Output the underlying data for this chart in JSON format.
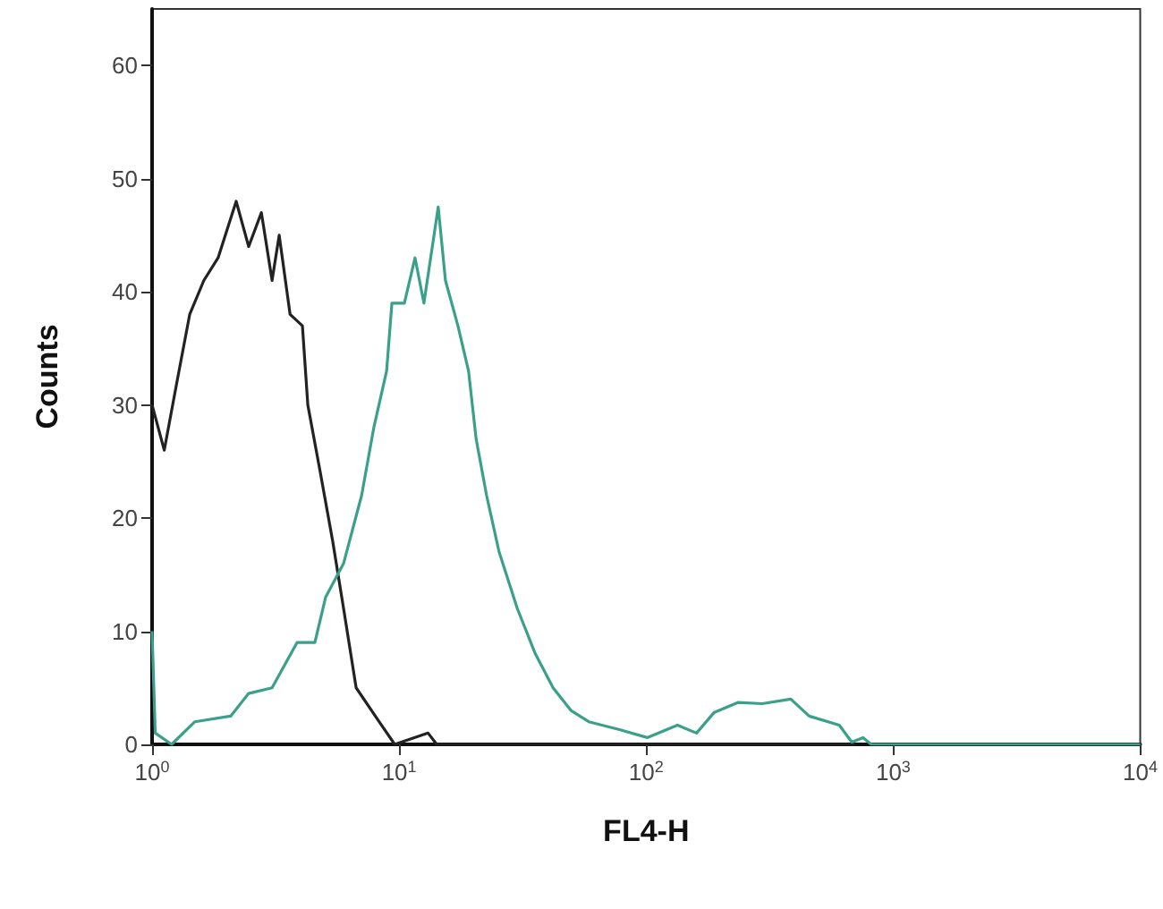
{
  "chart_data": {
    "type": "line",
    "xlabel": "FL4-H",
    "ylabel": "Counts",
    "log": "x",
    "grid": false,
    "marker": "none",
    "line_style": "solid",
    "xlim": [
      1,
      10000
    ],
    "xticks": [
      {
        "value": 1,
        "label": "10$^{0}$"
      },
      {
        "value": 10,
        "label": "10$^{1}$"
      },
      {
        "value": 100,
        "label": "10$^{2}$"
      },
      {
        "value": 1000,
        "label": "10$^{3}$"
      },
      {
        "value": 10000,
        "label": "10$^{4}$"
      }
    ],
    "ylim": [
      0,
      65
    ],
    "yticks": [
      0,
      10,
      20,
      30,
      40,
      50,
      60
    ],
    "series": [
      {
        "color": "#222222",
        "x": [
          1,
          1.12,
          1.26,
          1.42,
          1.62,
          1.85,
          2.19,
          2.46,
          2.77,
          3.06,
          3.27,
          3.62,
          4.06,
          4.27,
          4.8,
          5.38,
          5.96,
          6.7,
          8.3,
          9.6,
          13.1,
          14.2,
          100,
          700
        ],
        "values": [
          30,
          26,
          32,
          38,
          41,
          43,
          48,
          44,
          47,
          41,
          45,
          38,
          37,
          30,
          24,
          18,
          12,
          5,
          2,
          0,
          1,
          0,
          0,
          0
        ]
      },
      {
        "color": "#3aa08a",
        "x": [
          1,
          1.03,
          1.2,
          1.49,
          2.08,
          2.46,
          3.06,
          3.86,
          4.56,
          5.04,
          5.96,
          7.05,
          7.9,
          8.9,
          9.35,
          10.5,
          11.6,
          12.6,
          14.4,
          15.4,
          17.3,
          19.1,
          20.5,
          22.6,
          25.4,
          30.1,
          35.6,
          42,
          49.6,
          58.6,
          78,
          101,
          134,
          160,
          188,
          235,
          295,
          385,
          457,
          605,
          680,
          755,
          815,
          10000
        ],
        "values": [
          10,
          1,
          0,
          2,
          2.5,
          4.5,
          5,
          9,
          9,
          13,
          16,
          22,
          28,
          33,
          39,
          39,
          43,
          39,
          47.5,
          41,
          37,
          33,
          27,
          22,
          17,
          12,
          8,
          5,
          3,
          2,
          1.3,
          0.6,
          1.7,
          1,
          2.8,
          3.7,
          3.6,
          4,
          2.5,
          1.7,
          0.2,
          0.6,
          0,
          0
        ]
      }
    ]
  }
}
